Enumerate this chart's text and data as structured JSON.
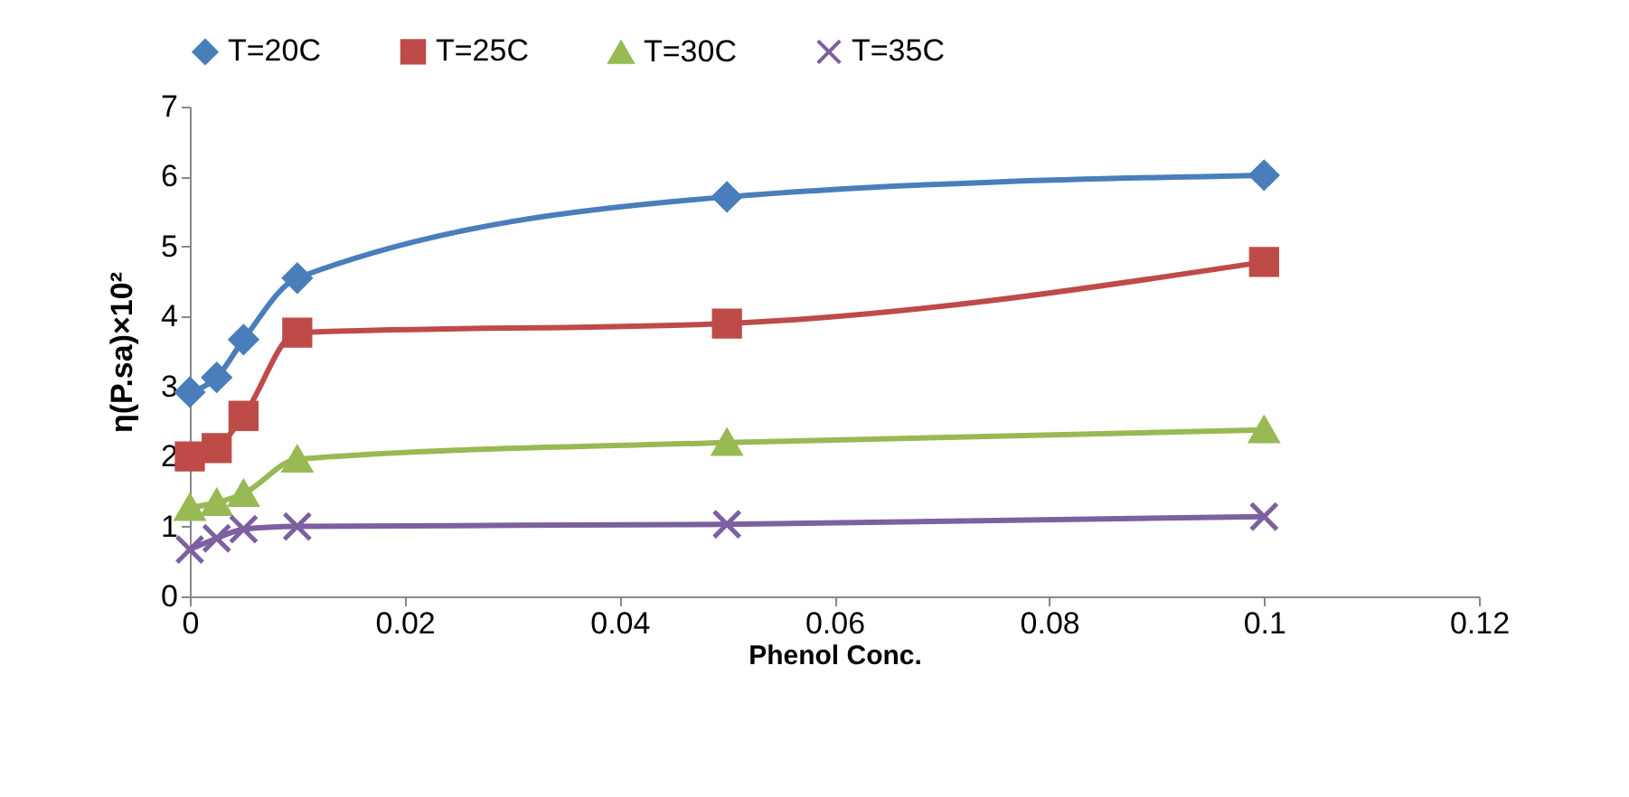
{
  "chart_data": {
    "type": "line",
    "xlabel": "Phenol Conc.",
    "ylabel": "η(P.sa)×10²",
    "x": [
      0,
      0.0025,
      0.005,
      0.01,
      0.05,
      0.1
    ],
    "series": [
      {
        "name": "T=20C",
        "color": "#4a7ebb",
        "marker": "diamond",
        "values": [
          2.92,
          3.13,
          3.67,
          4.55,
          5.71,
          6.02
        ]
      },
      {
        "name": "T=25C",
        "color": "#be4b48",
        "marker": "square",
        "values": [
          2.0,
          2.12,
          2.58,
          3.77,
          3.9,
          4.78
        ]
      },
      {
        "name": "T=30C",
        "color": "#98b954",
        "marker": "triangle",
        "values": [
          1.27,
          1.34,
          1.47,
          1.96,
          2.2,
          2.38
        ]
      },
      {
        "name": "T=35C",
        "color": "#7d60a0",
        "marker": "cross",
        "values": [
          0.67,
          0.83,
          0.96,
          1.0,
          1.03,
          1.14
        ]
      }
    ],
    "xlim": [
      0,
      0.12
    ],
    "xticks": [
      0,
      0.02,
      0.04,
      0.06,
      0.08,
      0.1,
      0.12
    ],
    "ylim": [
      0,
      7
    ],
    "yticks": [
      0,
      1,
      2,
      3,
      4,
      5,
      6,
      7
    ],
    "grid": false,
    "legend": "top",
    "line_style": "solid"
  }
}
